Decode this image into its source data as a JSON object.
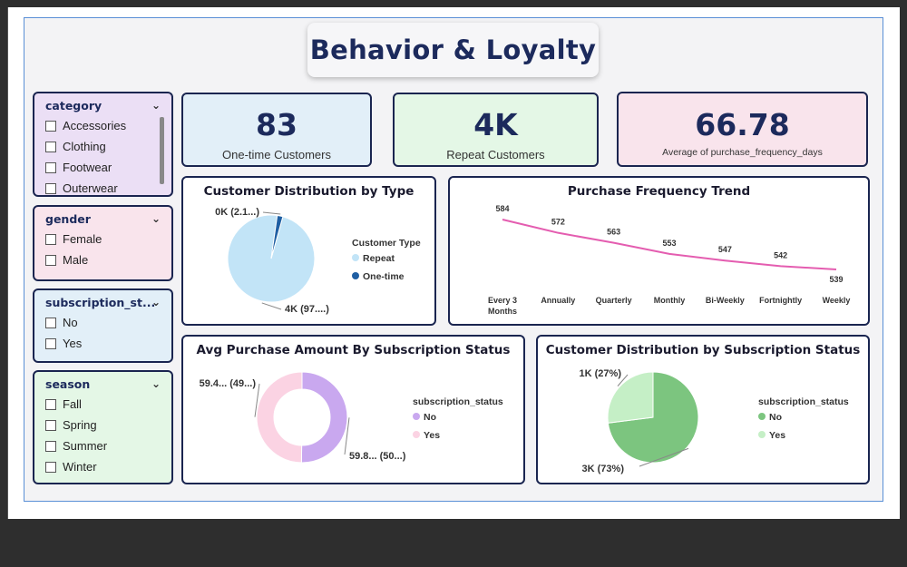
{
  "title": "Behavior & Loyalty",
  "slicers": {
    "category": {
      "label": "category",
      "items": [
        "Accessories",
        "Clothing",
        "Footwear",
        "Outerwear"
      ]
    },
    "gender": {
      "label": "gender",
      "items": [
        "Female",
        "Male"
      ]
    },
    "subscription": {
      "label": "subscription_st...",
      "items": [
        "No",
        "Yes"
      ]
    },
    "season": {
      "label": "season",
      "items": [
        "Fall",
        "Spring",
        "Summer",
        "Winter"
      ]
    }
  },
  "kpis": {
    "one_time": {
      "value": "83",
      "label": "One-time Customers"
    },
    "repeat": {
      "value": "4K",
      "label": "Repeat Customers"
    },
    "avg_freq": {
      "value": "66.78",
      "label": "Average of purchase_frequency_days"
    }
  },
  "colors": {
    "kpi1_bg": "#e2eff8",
    "kpi2_bg": "#e4f7e6",
    "kpi3_bg": "#f9e4ec",
    "slicer1_bg": "#ebdff5",
    "slicer2_bg": "#f9e4ec",
    "slicer3_bg": "#e2eff8",
    "slicer4_bg": "#e4f7e6"
  },
  "chart_data": [
    {
      "type": "pie",
      "title": "Customer Distribution by Type",
      "legend_title": "Customer Type",
      "legend_position": "right",
      "slices": [
        {
          "name": "Repeat",
          "value": 97.9,
          "label": "4K (97....)",
          "color": "#c2e4f7"
        },
        {
          "name": "One-time",
          "value": 2.1,
          "label": "0K (2.1...)",
          "color": "#1f5fa3"
        }
      ]
    },
    {
      "type": "line",
      "title": "Purchase Frequency Trend",
      "categories": [
        "Every 3 Months",
        "Annually",
        "Quarterly",
        "Monthly",
        "Bi-Weekly",
        "Fortnightly",
        "Weekly"
      ],
      "values": [
        584,
        572,
        563,
        553,
        547,
        542,
        539
      ],
      "color": "#e45db0"
    },
    {
      "type": "pie",
      "title": "Avg Purchase Amount By Subscription Status",
      "legend_title": "subscription_status",
      "legend_position": "right",
      "donut": true,
      "slices": [
        {
          "name": "No",
          "value": 50.2,
          "label": "59.8... (50...)",
          "color": "#c9a8ef"
        },
        {
          "name": "Yes",
          "value": 49.8,
          "label": "59.4... (49...)",
          "color": "#fbd3e3"
        }
      ]
    },
    {
      "type": "pie",
      "title": "Customer Distribution by Subscription Status",
      "legend_title": "subscription_status",
      "legend_position": "right",
      "slices": [
        {
          "name": "No",
          "value": 73,
          "label": "3K (73%)",
          "color": "#7cc57f"
        },
        {
          "name": "Yes",
          "value": 27,
          "label": "1K (27%)",
          "color": "#c5efc6"
        }
      ]
    }
  ]
}
